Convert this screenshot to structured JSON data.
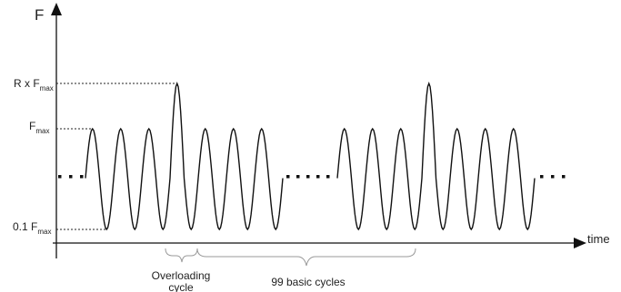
{
  "axes": {
    "y_label": "F",
    "x_label": "time"
  },
  "levels": {
    "overload": {
      "prefix": "R x F",
      "sub": "max"
    },
    "max": {
      "prefix": "F",
      "sub": "max"
    },
    "min": {
      "prefix": "0.1 F",
      "sub": "max"
    }
  },
  "braces": {
    "overloading": {
      "line1": "Overloading",
      "line2": "cycle"
    },
    "basic": "99 basic cycles"
  },
  "colors": {
    "line": "#111111",
    "guide": "#222222",
    "brace": "#999999",
    "text": "#222222"
  }
}
